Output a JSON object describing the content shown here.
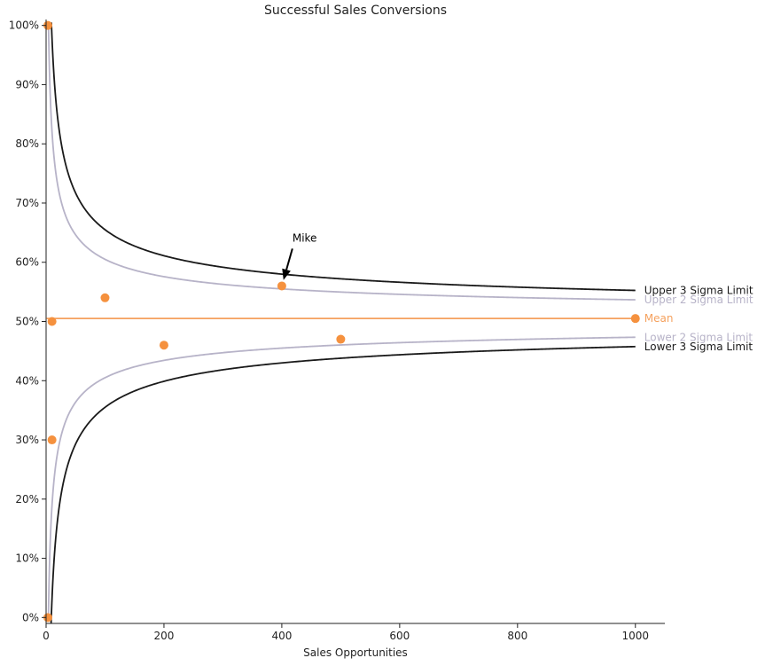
{
  "chart_data": {
    "type": "scatter",
    "title": "Successful Sales Conversions",
    "xlabel": "Sales Opportunities",
    "ylabel": "",
    "xlim": [
      0,
      1050
    ],
    "ylim": [
      -0.01,
      1.01
    ],
    "xticks": [
      0,
      200,
      400,
      600,
      800,
      1000
    ],
    "yticks": [
      0,
      0.1,
      0.2,
      0.3,
      0.4,
      0.5,
      0.6,
      0.7,
      0.8,
      0.9,
      1.0
    ],
    "ytick_labels": [
      "0%",
      "10%",
      "20%",
      "30%",
      "40%",
      "50%",
      "60%",
      "70%",
      "80%",
      "90%",
      "100%"
    ],
    "grid": false,
    "mean": 0.505,
    "points": [
      {
        "x": 3,
        "y": 1.0
      },
      {
        "x": 3,
        "y": 0.0
      },
      {
        "x": 10,
        "y": 0.5
      },
      {
        "x": 10,
        "y": 0.3
      },
      {
        "x": 100,
        "y": 0.54
      },
      {
        "x": 200,
        "y": 0.46
      },
      {
        "x": 400,
        "y": 0.56
      },
      {
        "x": 500,
        "y": 0.47
      },
      {
        "x": 1000,
        "y": 0.505
      }
    ],
    "limit_lines": [
      {
        "name": "Upper 3 Sigma Limit",
        "sigma": 3,
        "color": "#1a1a1a"
      },
      {
        "name": "Upper 2 Sigma Limit",
        "sigma": 2,
        "color": "#b7b3c8"
      },
      {
        "name": "Mean",
        "sigma": 0,
        "color": "#f5a15e"
      },
      {
        "name": "Lower 2 Sigma Limit",
        "sigma": -2,
        "color": "#b7b3c8"
      },
      {
        "name": "Lower 3 Sigma Limit",
        "sigma": -3,
        "color": "#1a1a1a"
      }
    ],
    "annotation": {
      "text": "Mike",
      "x": 400,
      "y": 0.56,
      "text_x": 430,
      "text_y": 0.635
    },
    "colors": {
      "points": "#f5913e",
      "axis": "#222222"
    }
  }
}
